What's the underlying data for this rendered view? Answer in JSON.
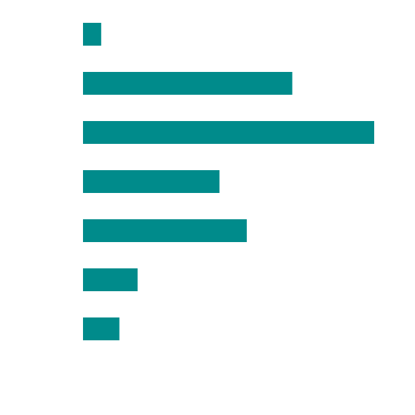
{
  "chart_data": {
    "type": "barh",
    "categories": [
      null,
      null,
      null,
      null,
      null,
      null,
      null
    ],
    "values": [
      1,
      11.5,
      16,
      7.5,
      9,
      3,
      2
    ],
    "color": "#008b8b",
    "xlim": [
      0,
      16
    ],
    "grid": false
  }
}
